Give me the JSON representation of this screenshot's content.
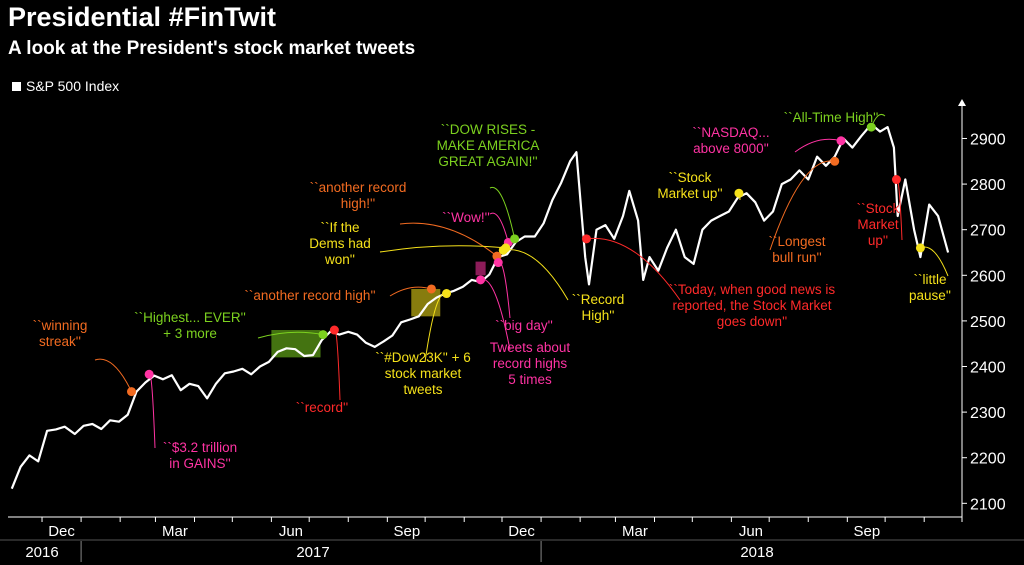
{
  "title": "Presidential #FinTwit",
  "subtitle": "A look at the President's stock market tweets",
  "legend": {
    "label": "S&P 500 Index"
  },
  "colors": {
    "background": "#000000",
    "line": "#ffffff",
    "orange": "#f26b21",
    "magenta": "#ff33a3",
    "green": "#7cd11f",
    "yellow": "#f5e11a",
    "red": "#ff2a2a"
  },
  "chart_data": {
    "type": "line",
    "title": "Presidential #FinTwit",
    "subtitle": "A look at the President's stock market tweets",
    "series": [
      {
        "name": "S&P 500 Index",
        "x": [
          "2016-11-07",
          "2016-11-14",
          "2016-11-21",
          "2016-11-28",
          "2016-12-05",
          "2016-12-12",
          "2016-12-19",
          "2016-12-27",
          "2017-01-03",
          "2017-01-10",
          "2017-01-17",
          "2017-01-24",
          "2017-01-31",
          "2017-02-07",
          "2017-02-14",
          "2017-02-21",
          "2017-02-28",
          "2017-03-07",
          "2017-03-14",
          "2017-03-21",
          "2017-03-28",
          "2017-04-04",
          "2017-04-11",
          "2017-04-18",
          "2017-04-25",
          "2017-05-02",
          "2017-05-09",
          "2017-05-16",
          "2017-05-23",
          "2017-05-30",
          "2017-06-06",
          "2017-06-13",
          "2017-06-20",
          "2017-06-27",
          "2017-07-04",
          "2017-07-11",
          "2017-07-18",
          "2017-07-25",
          "2017-08-01",
          "2017-08-08",
          "2017-08-15",
          "2017-08-22",
          "2017-08-29",
          "2017-09-05",
          "2017-09-12",
          "2017-09-19",
          "2017-09-26",
          "2017-10-03",
          "2017-10-10",
          "2017-10-17",
          "2017-10-24",
          "2017-10-31",
          "2017-11-07",
          "2017-11-14",
          "2017-11-21",
          "2017-11-28",
          "2017-12-05",
          "2017-12-12",
          "2017-12-19",
          "2017-12-27",
          "2018-01-03",
          "2018-01-10",
          "2018-01-17",
          "2018-01-24",
          "2018-01-29",
          "2018-02-05",
          "2018-02-08",
          "2018-02-14",
          "2018-02-21",
          "2018-02-28",
          "2018-03-07",
          "2018-03-12",
          "2018-03-19",
          "2018-03-23",
          "2018-03-28",
          "2018-04-04",
          "2018-04-11",
          "2018-04-18",
          "2018-04-25",
          "2018-05-02",
          "2018-05-09",
          "2018-05-16",
          "2018-05-23",
          "2018-05-30",
          "2018-06-06",
          "2018-06-13",
          "2018-06-20",
          "2018-06-27",
          "2018-07-04",
          "2018-07-11",
          "2018-07-18",
          "2018-07-25",
          "2018-08-01",
          "2018-08-08",
          "2018-08-15",
          "2018-08-22",
          "2018-08-29",
          "2018-09-05",
          "2018-09-12",
          "2018-09-20",
          "2018-09-27",
          "2018-10-03",
          "2018-10-08",
          "2018-10-11",
          "2018-10-17",
          "2018-10-24",
          "2018-10-29",
          "2018-11-05",
          "2018-11-12",
          "2018-11-20"
        ],
        "values": [
          2132,
          2180,
          2205,
          2192,
          2259,
          2262,
          2268,
          2252,
          2270,
          2274,
          2263,
          2282,
          2279,
          2294,
          2345,
          2365,
          2380,
          2372,
          2381,
          2348,
          2362,
          2357,
          2330,
          2362,
          2385,
          2389,
          2395,
          2383,
          2400,
          2410,
          2432,
          2440,
          2438,
          2423,
          2425,
          2458,
          2477,
          2470,
          2476,
          2470,
          2452,
          2443,
          2455,
          2468,
          2497,
          2503,
          2510,
          2537,
          2551,
          2560,
          2566,
          2575,
          2590,
          2585,
          2602,
          2640,
          2646,
          2673,
          2685,
          2685,
          2714,
          2765,
          2803,
          2850,
          2870,
          2640,
          2580,
          2700,
          2710,
          2680,
          2730,
          2785,
          2720,
          2590,
          2640,
          2610,
          2660,
          2700,
          2640,
          2625,
          2700,
          2720,
          2730,
          2740,
          2770,
          2780,
          2760,
          2720,
          2740,
          2800,
          2810,
          2830,
          2810,
          2860,
          2840,
          2860,
          2900,
          2880,
          2905,
          2931,
          2915,
          2925,
          2880,
          2730,
          2810,
          2700,
          2640,
          2755,
          2730,
          2650
        ]
      }
    ],
    "yticks": [
      2100,
      2200,
      2300,
      2400,
      2500,
      2600,
      2700,
      2800,
      2900
    ],
    "ylim": [
      2070,
      2980
    ],
    "xlim": [
      "2016-11-04",
      "2018-12-01"
    ],
    "month_ticks": [
      "Dec",
      "Mar",
      "Jun",
      "Sep",
      "Dec",
      "Mar",
      "Jun",
      "Sep"
    ],
    "year_labels": [
      "2016",
      "2017",
      "2018"
    ],
    "grid": false,
    "annotations": [
      {
        "text": "``winning streak''",
        "color": "orange",
        "x": "2017-02-10",
        "y": 2345
      },
      {
        "text": "``$3.2 trillion in GAINS''",
        "color": "magenta",
        "x": "2017-02-24",
        "y": 2383
      },
      {
        "text": "``Highest... EVER'' + 3 more",
        "color": "green",
        "x": "2017-07-12",
        "y": 2470
      },
      {
        "text": "``record''",
        "color": "red",
        "x": "2017-07-21",
        "y": 2480
      },
      {
        "text": "``another record high''",
        "color": "orange",
        "x": "2017-10-06",
        "y": 2570
      },
      {
        "text": "``#Dow23K'' + 6 stock market tweets",
        "color": "yellow",
        "x": "2017-10-18",
        "y": 2560
      },
      {
        "text": "``another record high!''",
        "color": "orange",
        "x": "2017-11-27",
        "y": 2642
      },
      {
        "text": "Tweets about record highs 5 times",
        "color": "magenta",
        "x": "2017-11-14",
        "y": 2590
      },
      {
        "text": "``big day''",
        "color": "magenta",
        "x": "2017-11-28",
        "y": 2628
      },
      {
        "text": "``Wow!''",
        "color": "magenta",
        "x": "2017-12-06",
        "y": 2672
      },
      {
        "text": "``DOW RISES - MAKE AMERICA GREAT AGAIN!''",
        "color": "green",
        "x": "2017-12-11",
        "y": 2680
      },
      {
        "text": "``If the Dems had won''",
        "color": "yellow",
        "x": "2017-12-04",
        "y": 2660
      },
      {
        "text": "``Record High''",
        "color": "yellow",
        "x": "2017-12-02",
        "y": 2655
      },
      {
        "text": "``Today, when good news is reported, the Stock Market goes down''",
        "color": "red",
        "x": "2018-02-06",
        "y": 2680
      },
      {
        "text": "``Stock Market up''",
        "color": "yellow",
        "x": "2018-06-07",
        "y": 2780
      },
      {
        "text": "``Longest bull run''",
        "color": "orange",
        "x": "2018-08-22",
        "y": 2850
      },
      {
        "text": "``NASDAQ... above 8000''",
        "color": "magenta",
        "x": "2018-08-27",
        "y": 2895
      },
      {
        "text": "``All-Time High''",
        "color": "green",
        "x": "2018-09-20",
        "y": 2925
      },
      {
        "text": "``Stock Market up''",
        "color": "red",
        "x": "2018-10-10",
        "y": 2810
      },
      {
        "text": "``little pause''",
        "color": "yellow",
        "x": "2018-10-29",
        "y": 2660
      }
    ],
    "highlight_ranges": [
      {
        "color": "green",
        "x0": "2017-06-01",
        "x1": "2017-07-10",
        "y0": 2420,
        "y1": 2480
      },
      {
        "color": "yellow",
        "x0": "2017-09-20",
        "x1": "2017-10-13",
        "y0": 2510,
        "y1": 2570
      },
      {
        "color": "magenta",
        "x0": "2017-11-10",
        "x1": "2017-11-18",
        "y0": 2600,
        "y1": 2630
      }
    ]
  }
}
